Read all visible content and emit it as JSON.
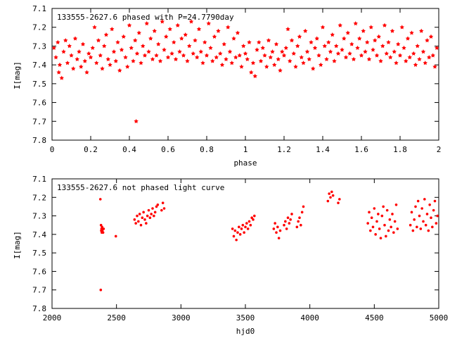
{
  "colors": {
    "points": "#ff0000",
    "axes": "#000000",
    "background": "#ffffff"
  },
  "chart_data": [
    {
      "type": "scatter",
      "title": "133555-2627.6 phased with P=24.7790day",
      "xlabel": "phase",
      "ylabel": "I[mag]",
      "xlim": [
        0,
        2
      ],
      "ylim": [
        7.1,
        7.8
      ],
      "y_inverted": true,
      "xticks": [
        0,
        0.2,
        0.4,
        0.6,
        0.8,
        1,
        1.2,
        1.4,
        1.6,
        1.8,
        2
      ],
      "xtick_labels": [
        "0",
        "0.2",
        "0.4",
        "0.6",
        "0.8",
        "1",
        "1.2",
        "1.4",
        "1.6",
        "1.8",
        "2"
      ],
      "yticks": [
        7.1,
        7.2,
        7.3,
        7.4,
        7.5,
        7.6,
        7.7,
        7.8
      ],
      "ytick_labels": [
        "7.1",
        "7.2",
        "7.3",
        "7.4",
        "7.5",
        "7.6",
        "7.7",
        "7.8"
      ],
      "grid": false,
      "marker": "star",
      "points": [
        [
          0.01,
          7.31
        ],
        [
          0.02,
          7.36
        ],
        [
          0.03,
          7.28
        ],
        [
          0.035,
          7.44
        ],
        [
          0.04,
          7.4
        ],
        [
          0.05,
          7.47
        ],
        [
          0.06,
          7.33
        ],
        [
          0.07,
          7.27
        ],
        [
          0.08,
          7.39
        ],
        [
          0.09,
          7.3
        ],
        [
          0.1,
          7.35
        ],
        [
          0.11,
          7.42
        ],
        [
          0.12,
          7.26
        ],
        [
          0.13,
          7.37
        ],
        [
          0.14,
          7.33
        ],
        [
          0.15,
          7.41
        ],
        [
          0.16,
          7.29
        ],
        [
          0.17,
          7.38
        ],
        [
          0.18,
          7.44
        ],
        [
          0.19,
          7.34
        ],
        [
          0.2,
          7.36
        ],
        [
          0.21,
          7.31
        ],
        [
          0.22,
          7.2
        ],
        [
          0.23,
          7.39
        ],
        [
          0.24,
          7.27
        ],
        [
          0.25,
          7.35
        ],
        [
          0.26,
          7.42
        ],
        [
          0.27,
          7.3
        ],
        [
          0.28,
          7.24
        ],
        [
          0.29,
          7.37
        ],
        [
          0.3,
          7.4
        ],
        [
          0.31,
          7.21
        ],
        [
          0.32,
          7.33
        ],
        [
          0.33,
          7.38
        ],
        [
          0.34,
          7.28
        ],
        [
          0.35,
          7.43
        ],
        [
          0.36,
          7.32
        ],
        [
          0.37,
          7.25
        ],
        [
          0.38,
          7.36
        ],
        [
          0.39,
          7.41
        ],
        [
          0.4,
          7.19
        ],
        [
          0.41,
          7.31
        ],
        [
          0.42,
          7.38
        ],
        [
          0.43,
          7.27
        ],
        [
          0.435,
          7.7
        ],
        [
          0.44,
          7.34
        ],
        [
          0.45,
          7.23
        ],
        [
          0.46,
          7.39
        ],
        [
          0.47,
          7.3
        ],
        [
          0.48,
          7.35
        ],
        [
          0.49,
          7.18
        ],
        [
          0.5,
          7.33
        ],
        [
          0.51,
          7.26
        ],
        [
          0.52,
          7.37
        ],
        [
          0.53,
          7.22
        ],
        [
          0.54,
          7.35
        ],
        [
          0.55,
          7.29
        ],
        [
          0.56,
          7.38
        ],
        [
          0.57,
          7.17
        ],
        [
          0.58,
          7.32
        ],
        [
          0.59,
          7.25
        ],
        [
          0.6,
          7.36
        ],
        [
          0.61,
          7.21
        ],
        [
          0.62,
          7.34
        ],
        [
          0.63,
          7.28
        ],
        [
          0.64,
          7.37
        ],
        [
          0.65,
          7.19
        ],
        [
          0.66,
          7.33
        ],
        [
          0.67,
          7.26
        ],
        [
          0.68,
          7.35
        ],
        [
          0.69,
          7.24
        ],
        [
          0.7,
          7.38
        ],
        [
          0.71,
          7.3
        ],
        [
          0.72,
          7.17
        ],
        [
          0.73,
          7.34
        ],
        [
          0.74,
          7.27
        ],
        [
          0.75,
          7.36
        ],
        [
          0.76,
          7.21
        ],
        [
          0.77,
          7.33
        ],
        [
          0.78,
          7.39
        ],
        [
          0.79,
          7.28
        ],
        [
          0.8,
          7.35
        ],
        [
          0.81,
          7.18
        ],
        [
          0.82,
          7.31
        ],
        [
          0.83,
          7.38
        ],
        [
          0.84,
          7.25
        ],
        [
          0.85,
          7.36
        ],
        [
          0.86,
          7.22
        ],
        [
          0.87,
          7.34
        ],
        [
          0.88,
          7.4
        ],
        [
          0.89,
          7.29
        ],
        [
          0.9,
          7.37
        ],
        [
          0.91,
          7.2
        ],
        [
          0.92,
          7.33
        ],
        [
          0.93,
          7.39
        ],
        [
          0.94,
          7.26
        ],
        [
          0.95,
          7.36
        ],
        [
          0.96,
          7.23
        ],
        [
          0.97,
          7.35
        ],
        [
          0.98,
          7.41
        ],
        [
          0.99,
          7.3
        ],
        [
          1.0,
          7.34
        ],
        [
          1.01,
          7.37
        ],
        [
          1.02,
          7.28
        ],
        [
          1.03,
          7.44
        ],
        [
          1.04,
          7.39
        ],
        [
          1.05,
          7.46
        ],
        [
          1.06,
          7.32
        ],
        [
          1.07,
          7.28
        ],
        [
          1.08,
          7.38
        ],
        [
          1.09,
          7.31
        ],
        [
          1.1,
          7.35
        ],
        [
          1.11,
          7.41
        ],
        [
          1.12,
          7.27
        ],
        [
          1.13,
          7.36
        ],
        [
          1.14,
          7.33
        ],
        [
          1.15,
          7.4
        ],
        [
          1.16,
          7.29
        ],
        [
          1.17,
          7.37
        ],
        [
          1.18,
          7.43
        ],
        [
          1.19,
          7.33
        ],
        [
          1.2,
          7.35
        ],
        [
          1.21,
          7.31
        ],
        [
          1.22,
          7.21
        ],
        [
          1.23,
          7.38
        ],
        [
          1.24,
          7.27
        ],
        [
          1.25,
          7.34
        ],
        [
          1.26,
          7.41
        ],
        [
          1.27,
          7.3
        ],
        [
          1.28,
          7.25
        ],
        [
          1.29,
          7.36
        ],
        [
          1.3,
          7.39
        ],
        [
          1.31,
          7.22
        ],
        [
          1.32,
          7.33
        ],
        [
          1.33,
          7.37
        ],
        [
          1.34,
          7.28
        ],
        [
          1.35,
          7.42
        ],
        [
          1.36,
          7.31
        ],
        [
          1.37,
          7.26
        ],
        [
          1.38,
          7.35
        ],
        [
          1.39,
          7.4
        ],
        [
          1.4,
          7.2
        ],
        [
          1.41,
          7.3
        ],
        [
          1.42,
          7.37
        ],
        [
          1.43,
          7.28
        ],
        [
          1.44,
          7.33
        ],
        [
          1.45,
          7.24
        ],
        [
          1.46,
          7.38
        ],
        [
          1.47,
          7.3
        ],
        [
          1.48,
          7.34
        ],
        [
          1.49,
          7.19
        ],
        [
          1.5,
          7.32
        ],
        [
          1.51,
          7.26
        ],
        [
          1.52,
          7.36
        ],
        [
          1.53,
          7.23
        ],
        [
          1.54,
          7.34
        ],
        [
          1.55,
          7.29
        ],
        [
          1.56,
          7.37
        ],
        [
          1.57,
          7.18
        ],
        [
          1.58,
          7.31
        ],
        [
          1.59,
          7.26
        ],
        [
          1.6,
          7.35
        ],
        [
          1.61,
          7.22
        ],
        [
          1.62,
          7.33
        ],
        [
          1.63,
          7.28
        ],
        [
          1.64,
          7.37
        ],
        [
          1.65,
          7.2
        ],
        [
          1.66,
          7.32
        ],
        [
          1.67,
          7.27
        ],
        [
          1.68,
          7.35
        ],
        [
          1.69,
          7.25
        ],
        [
          1.7,
          7.38
        ],
        [
          1.71,
          7.3
        ],
        [
          1.72,
          7.19
        ],
        [
          1.73,
          7.34
        ],
        [
          1.74,
          7.28
        ],
        [
          1.75,
          7.36
        ],
        [
          1.76,
          7.22
        ],
        [
          1.77,
          7.33
        ],
        [
          1.78,
          7.39
        ],
        [
          1.79,
          7.29
        ],
        [
          1.8,
          7.35
        ],
        [
          1.81,
          7.2
        ],
        [
          1.82,
          7.31
        ],
        [
          1.83,
          7.38
        ],
        [
          1.84,
          7.26
        ],
        [
          1.85,
          7.36
        ],
        [
          1.86,
          7.23
        ],
        [
          1.87,
          7.34
        ],
        [
          1.88,
          7.4
        ],
        [
          1.89,
          7.3
        ],
        [
          1.9,
          7.37
        ],
        [
          1.91,
          7.22
        ],
        [
          1.92,
          7.33
        ],
        [
          1.93,
          7.39
        ],
        [
          1.94,
          7.27
        ],
        [
          1.95,
          7.36
        ],
        [
          1.96,
          7.25
        ],
        [
          1.97,
          7.35
        ],
        [
          1.98,
          7.41
        ],
        [
          1.99,
          7.31
        ]
      ]
    },
    {
      "type": "scatter",
      "title": "133555-2627.6 not phased light curve",
      "xlabel": "hjd0",
      "ylabel": "I[mag]",
      "xlim": [
        2000,
        5000
      ],
      "ylim": [
        7.1,
        7.8
      ],
      "y_inverted": true,
      "xticks": [
        2000,
        2500,
        3000,
        3500,
        4000,
        4500,
        5000
      ],
      "xtick_labels": [
        "2000",
        "2500",
        "3000",
        "3500",
        "4000",
        "4500",
        "5000"
      ],
      "yticks": [
        7.1,
        7.2,
        7.3,
        7.4,
        7.5,
        7.6,
        7.7,
        7.8
      ],
      "ytick_labels": [
        "7.1",
        "7.2",
        "7.3",
        "7.4",
        "7.5",
        "7.6",
        "7.7",
        "7.8"
      ],
      "grid": false,
      "marker": "dot",
      "points": [
        [
          2375,
          7.21
        ],
        [
          2378,
          7.7
        ],
        [
          2380,
          7.35
        ],
        [
          2382,
          7.38
        ],
        [
          2384,
          7.37
        ],
        [
          2386,
          7.39
        ],
        [
          2388,
          7.36
        ],
        [
          2390,
          7.38
        ],
        [
          2393,
          7.37
        ],
        [
          2396,
          7.39
        ],
        [
          2400,
          7.37
        ],
        [
          2495,
          7.41
        ],
        [
          2640,
          7.32
        ],
        [
          2650,
          7.34
        ],
        [
          2660,
          7.3
        ],
        [
          2670,
          7.33
        ],
        [
          2680,
          7.29
        ],
        [
          2690,
          7.35
        ],
        [
          2700,
          7.31
        ],
        [
          2710,
          7.28
        ],
        [
          2720,
          7.32
        ],
        [
          2730,
          7.34
        ],
        [
          2740,
          7.3
        ],
        [
          2750,
          7.27
        ],
        [
          2760,
          7.31
        ],
        [
          2770,
          7.29
        ],
        [
          2780,
          7.26
        ],
        [
          2790,
          7.3
        ],
        [
          2800,
          7.28
        ],
        [
          2810,
          7.25
        ],
        [
          2820,
          7.24
        ],
        [
          2850,
          7.27
        ],
        [
          2860,
          7.23
        ],
        [
          2870,
          7.26
        ],
        [
          3400,
          7.37
        ],
        [
          3410,
          7.41
        ],
        [
          3420,
          7.38
        ],
        [
          3430,
          7.43
        ],
        [
          3440,
          7.39
        ],
        [
          3450,
          7.36
        ],
        [
          3460,
          7.4
        ],
        [
          3470,
          7.37
        ],
        [
          3480,
          7.35
        ],
        [
          3490,
          7.39
        ],
        [
          3500,
          7.36
        ],
        [
          3510,
          7.34
        ],
        [
          3520,
          7.37
        ],
        [
          3530,
          7.33
        ],
        [
          3540,
          7.35
        ],
        [
          3550,
          7.31
        ],
        [
          3560,
          7.32
        ],
        [
          3570,
          7.3
        ],
        [
          3720,
          7.37
        ],
        [
          3730,
          7.34
        ],
        [
          3740,
          7.39
        ],
        [
          3750,
          7.36
        ],
        [
          3760,
          7.42
        ],
        [
          3770,
          7.38
        ],
        [
          3800,
          7.35
        ],
        [
          3810,
          7.33
        ],
        [
          3820,
          7.37
        ],
        [
          3830,
          7.31
        ],
        [
          3840,
          7.34
        ],
        [
          3850,
          7.32
        ],
        [
          3860,
          7.29
        ],
        [
          3900,
          7.36
        ],
        [
          3910,
          7.33
        ],
        [
          3920,
          7.31
        ],
        [
          3930,
          7.35
        ],
        [
          3940,
          7.28
        ],
        [
          3950,
          7.25
        ],
        [
          4140,
          7.22
        ],
        [
          4150,
          7.18
        ],
        [
          4160,
          7.2
        ],
        [
          4170,
          7.17
        ],
        [
          4180,
          7.19
        ],
        [
          4220,
          7.23
        ],
        [
          4230,
          7.21
        ],
        [
          4450,
          7.34
        ],
        [
          4460,
          7.28
        ],
        [
          4470,
          7.38
        ],
        [
          4480,
          7.31
        ],
        [
          4490,
          7.36
        ],
        [
          4500,
          7.26
        ],
        [
          4510,
          7.4
        ],
        [
          4520,
          7.33
        ],
        [
          4530,
          7.29
        ],
        [
          4540,
          7.37
        ],
        [
          4550,
          7.42
        ],
        [
          4560,
          7.3
        ],
        [
          4570,
          7.25
        ],
        [
          4580,
          7.35
        ],
        [
          4590,
          7.41
        ],
        [
          4600,
          7.27
        ],
        [
          4610,
          7.38
        ],
        [
          4620,
          7.32
        ],
        [
          4630,
          7.36
        ],
        [
          4640,
          7.29
        ],
        [
          4650,
          7.39
        ],
        [
          4660,
          7.33
        ],
        [
          4670,
          7.24
        ],
        [
          4680,
          7.37
        ],
        [
          4780,
          7.35
        ],
        [
          4790,
          7.28
        ],
        [
          4800,
          7.38
        ],
        [
          4810,
          7.32
        ],
        [
          4820,
          7.25
        ],
        [
          4830,
          7.36
        ],
        [
          4840,
          7.22
        ],
        [
          4850,
          7.3
        ],
        [
          4860,
          7.37
        ],
        [
          4870,
          7.26
        ],
        [
          4880,
          7.33
        ],
        [
          4890,
          7.21
        ],
        [
          4900,
          7.35
        ],
        [
          4910,
          7.29
        ],
        [
          4920,
          7.38
        ],
        [
          4930,
          7.24
        ],
        [
          4940,
          7.31
        ],
        [
          4950,
          7.36
        ],
        [
          4960,
          7.27
        ],
        [
          4970,
          7.22
        ],
        [
          4980,
          7.34
        ],
        [
          4990,
          7.3
        ]
      ]
    }
  ]
}
